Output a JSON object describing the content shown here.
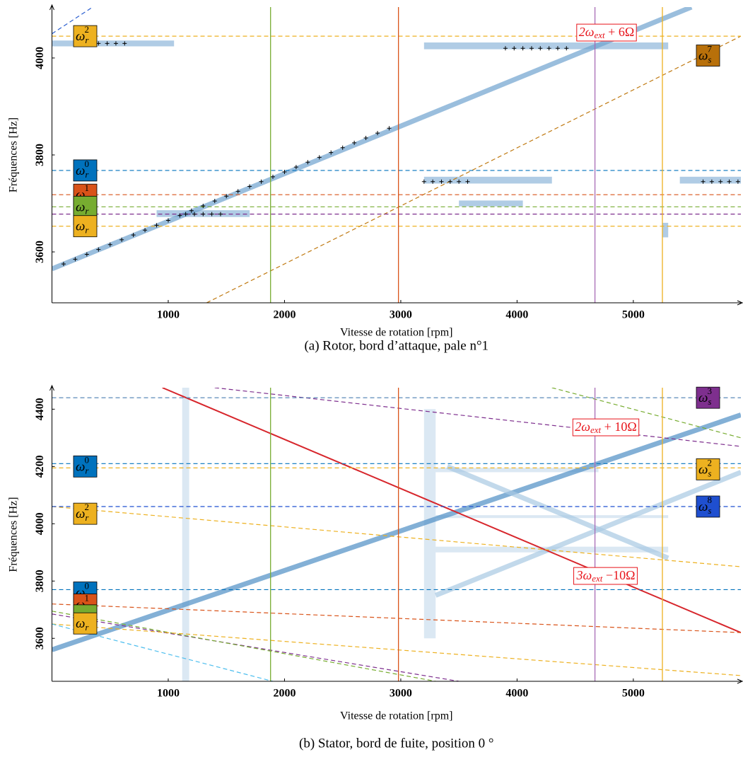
{
  "chart_data": [
    {
      "type": "line",
      "caption": "(a) Rotor, bord d’attaque, pale n°1",
      "xlabel": "Vitesse de rotation [rpm]",
      "ylabel": "Fréquences [Hz]",
      "xlim": [
        0,
        5925
      ],
      "ylim": [
        3495,
        4105
      ],
      "xticks": [
        1000,
        2000,
        3000,
        4000,
        5000
      ],
      "yticks": [
        3600,
        3800,
        4000
      ],
      "vlines": [
        {
          "x": 1880,
          "color": "#77ac30"
        },
        {
          "x": 2980,
          "color": "#d95319"
        },
        {
          "x": 4670,
          "color": "#a66bb5"
        },
        {
          "x": 5250,
          "color": "#edb120"
        }
      ],
      "hlines": [
        {
          "y": 4045,
          "color": "#edb120"
        },
        {
          "y": 3768,
          "color": "#0072bd"
        },
        {
          "y": 3718,
          "color": "#d95319"
        },
        {
          "y": 3678,
          "color": "#7e2f8e"
        },
        {
          "y": 3693,
          "color": "#77ac30"
        },
        {
          "y": 3653,
          "color": "#edb120"
        }
      ],
      "bands": [
        {
          "x": [
            0,
            1050
          ],
          "y": [
            4024,
            4036
          ]
        },
        {
          "x": [
            3200,
            5300
          ],
          "y": [
            4018,
            4032
          ]
        },
        {
          "x": [
            3200,
            4300
          ],
          "y": [
            3741,
            3755
          ]
        },
        {
          "x": [
            5400,
            5925
          ],
          "y": [
            3741,
            3755
          ]
        },
        {
          "x": [
            3500,
            4050
          ],
          "y": [
            3694,
            3706
          ]
        },
        {
          "x": [
            900,
            1700
          ],
          "y": [
            3672,
            3686
          ]
        },
        {
          "x": [
            5250,
            5300
          ],
          "y": [
            3630,
            3660
          ]
        }
      ],
      "series": [
        {
          "style": "ridge",
          "color": "#6fa3cf",
          "x": [
            0,
            5500
          ],
          "values": [
            3565,
            4105
          ]
        },
        {
          "style": "dashed",
          "color": "#2b5fd0",
          "x": [
            0,
            350
          ],
          "values": [
            4050,
            4105
          ]
        },
        {
          "style": "dashed",
          "color": "#c07a12",
          "x": [
            1330,
            5925
          ],
          "values": [
            3495,
            4045
          ]
        }
      ],
      "markers": [
        {
          "x": [
            100,
            200,
            300,
            400,
            500,
            600,
            700,
            800,
            900,
            1000,
            1100,
            1200,
            1300,
            1400,
            1500,
            1600,
            1700,
            1800,
            1900,
            2000,
            2100,
            2200,
            2300,
            2400,
            2500,
            2600,
            2700,
            2800,
            2900
          ],
          "values": [
            3575,
            3585,
            3595,
            3605,
            3615,
            3625,
            3635,
            3645,
            3655,
            3665,
            3675,
            3685,
            3695,
            3705,
            3715,
            3725,
            3735,
            3745,
            3755,
            3765,
            3775,
            3785,
            3795,
            3805,
            3815,
            3825,
            3835,
            3845,
            3855
          ]
        },
        {
          "x": [
            250,
            325,
            400,
            475,
            550,
            625
          ],
          "values": [
            4030,
            4030,
            4030,
            4030,
            4030,
            4030
          ]
        },
        {
          "x": [
            3900,
            3975,
            4050,
            4125,
            4200,
            4275,
            4350,
            4425
          ],
          "values": [
            4020,
            4020,
            4020,
            4020,
            4020,
            4020,
            4020,
            4020
          ]
        },
        {
          "x": [
            3200,
            3275,
            3350,
            3425,
            3500,
            3575
          ],
          "values": [
            3745,
            3745,
            3745,
            3745,
            3745,
            3745
          ]
        },
        {
          "x": [
            5600,
            5675,
            5750,
            5825,
            5900
          ],
          "values": [
            3745,
            3745,
            3745,
            3745,
            3745
          ]
        },
        {
          "x": [
            1150,
            1225,
            1300,
            1375,
            1450
          ],
          "values": [
            3678,
            3678,
            3678,
            3678,
            3678
          ]
        }
      ],
      "labels": [
        {
          "sym": "ω",
          "sub": "r",
          "sup": "2",
          "y": 4045,
          "color": "#edb120",
          "side": "left"
        },
        {
          "sym": "ω",
          "sub": "r",
          "sup": "0",
          "y": 3768,
          "color": "#0072bd",
          "side": "left"
        },
        {
          "sym": "ω",
          "sub": "r",
          "sup": "1",
          "y": 3718,
          "color": "#d95319",
          "side": "left"
        },
        {
          "sym": "ω",
          "sub": "r",
          "y": 3678,
          "color": "#7e2f8e",
          "side": "left"
        },
        {
          "sym": "ω",
          "sub": "r",
          "y": 3693,
          "color": "#77ac30",
          "side": "left"
        },
        {
          "sym": "ω",
          "sub": "r",
          "y": 3653,
          "color": "#edb120",
          "side": "left"
        },
        {
          "sym": "ω",
          "sub": "s",
          "sup": "7",
          "y": 4005,
          "color": "#b8700a",
          "side": "right"
        }
      ],
      "annotations": [
        {
          "text": "2ω",
          "sub": "ext",
          "rest": " + 6Ω"
        }
      ]
    },
    {
      "type": "line",
      "caption": "(b) Stator, bord de fuite, position 0 °",
      "xlabel": "Vitesse de rotation [rpm]",
      "ylabel": "Fréquences [Hz]",
      "xlim": [
        0,
        5925
      ],
      "ylim": [
        3450,
        4475
      ],
      "xticks": [
        1000,
        2000,
        3000,
        4000,
        5000
      ],
      "yticks": [
        3600,
        3800,
        4000,
        4200,
        4400
      ],
      "vlines": [
        {
          "x": 1880,
          "color": "#77ac30"
        },
        {
          "x": 2980,
          "color": "#d95319"
        },
        {
          "x": 4670,
          "color": "#a66bb5"
        },
        {
          "x": 5250,
          "color": "#edb120"
        }
      ],
      "hlines": [
        {
          "y": 4440,
          "color": "#4a7fb0"
        },
        {
          "y": 4210,
          "color": "#0072bd"
        },
        {
          "y": 4195,
          "color": "#edb120"
        },
        {
          "y": 4060,
          "color": "#1f4fd0"
        },
        {
          "y": 3770,
          "color": "#0072bd"
        }
      ],
      "bands": [
        {
          "x": [
            1120,
            1180
          ],
          "y": [
            3450,
            4475
          ]
        },
        {
          "x": [
            3200,
            3300
          ],
          "y": [
            3600,
            4400
          ]
        },
        {
          "x": [
            3300,
            5300
          ],
          "y": [
            3900,
            3920
          ]
        },
        {
          "x": [
            3300,
            4700
          ],
          "y": [
            4180,
            4195
          ]
        },
        {
          "x": [
            3300,
            5300
          ],
          "y": [
            4020,
            4030
          ]
        }
      ],
      "series": [
        {
          "style": "ridge",
          "color": "#4f8fc4",
          "x": [
            0,
            5925
          ],
          "values": [
            3560,
            4380
          ]
        },
        {
          "style": "ridge",
          "color": "#a8c9e3",
          "x": [
            3300,
            5925
          ],
          "values": [
            3750,
            4180
          ]
        },
        {
          "style": "ridge",
          "color": "#a8c9e3",
          "x": [
            3400,
            5300
          ],
          "values": [
            4200,
            3880
          ]
        },
        {
          "style": "solid",
          "color": "#d7262c",
          "x": [
            950,
            5925
          ],
          "values": [
            4475,
            3620
          ]
        },
        {
          "style": "dashed",
          "color": "#7e2f8e",
          "x": [
            1400,
            5925
          ],
          "values": [
            4475,
            4270
          ]
        },
        {
          "style": "dashed",
          "color": "#77ac30",
          "x": [
            4300,
            5925
          ],
          "values": [
            4475,
            4300
          ]
        },
        {
          "style": "dashed",
          "color": "#edb120",
          "x": [
            0,
            5925
          ],
          "values": [
            4060,
            3850
          ]
        },
        {
          "style": "dashed",
          "color": "#d95319",
          "x": [
            0,
            5925
          ],
          "values": [
            3720,
            3620
          ]
        },
        {
          "style": "dashed",
          "color": "#7e2f8e",
          "x": [
            0,
            3500
          ],
          "values": [
            3685,
            3450
          ]
        },
        {
          "style": "dashed",
          "color": "#77ac30",
          "x": [
            0,
            3300
          ],
          "values": [
            3695,
            3450
          ]
        },
        {
          "style": "dashed",
          "color": "#edb120",
          "x": [
            0,
            5925
          ],
          "values": [
            3650,
            3470
          ]
        },
        {
          "style": "dashed",
          "color": "#4dbeee",
          "x": [
            0,
            1900
          ],
          "values": [
            3650,
            3450
          ]
        }
      ],
      "markers": [],
      "labels": [
        {
          "sym": "ω",
          "sub": "r",
          "sup": "0",
          "y": 4200,
          "color": "#0072bd",
          "side": "left"
        },
        {
          "sym": "ω",
          "sub": "r",
          "sup": "2",
          "y": 4035,
          "color": "#edb120",
          "side": "left"
        },
        {
          "sym": "ω",
          "sub": "r",
          "sup": "0",
          "y": 3760,
          "color": "#0072bd",
          "side": "left"
        },
        {
          "sym": "ω",
          "sub": "r",
          "sup": "1",
          "y": 3718,
          "color": "#d95319",
          "side": "left"
        },
        {
          "sym": "ω",
          "sub": "r",
          "y": 3680,
          "color": "#77ac30",
          "side": "left"
        },
        {
          "sym": "ω",
          "sub": "r",
          "y": 3652,
          "color": "#edb120",
          "side": "left"
        },
        {
          "sym": "ω",
          "sub": "s",
          "sup": "3",
          "y": 4440,
          "color": "#7e2f8e",
          "side": "right"
        },
        {
          "sym": "ω",
          "sub": "s",
          "sup": "2",
          "y": 4190,
          "color": "#edb120",
          "side": "right"
        },
        {
          "sym": "ω",
          "sub": "s",
          "sup": "8",
          "y": 4060,
          "color": "#1f4fd0",
          "side": "right"
        }
      ],
      "annotations": [
        {
          "text": "2ω",
          "sub": "ext",
          "rest": " + 10Ω"
        },
        {
          "text": "3ω",
          "sub": "ext",
          "rest": " −10Ω"
        }
      ]
    }
  ]
}
